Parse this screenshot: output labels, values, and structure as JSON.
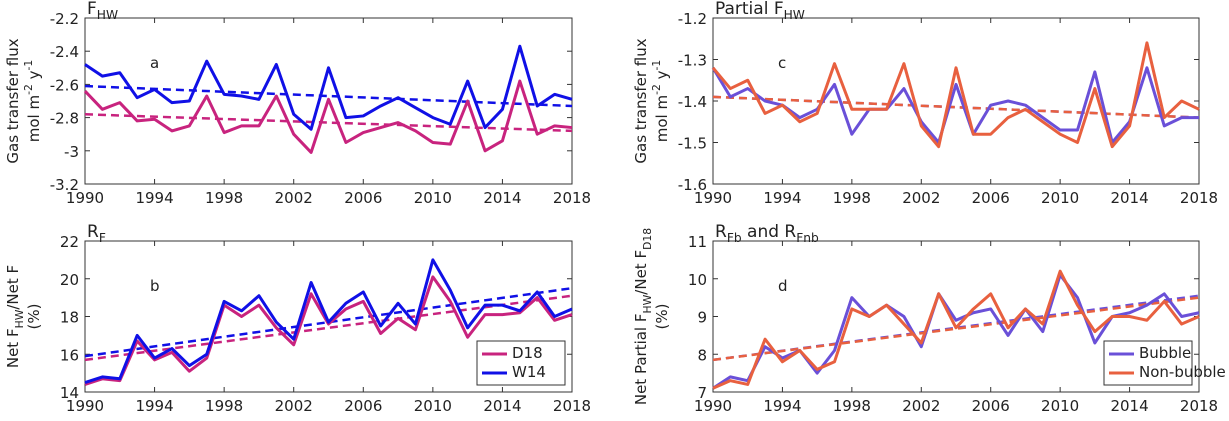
{
  "chart_data": [
    {
      "type": "line",
      "panel": "a",
      "title": [
        "F",
        {
          "text": "HW",
          "script": "sub"
        }
      ],
      "ylabel": [
        [
          "Gas transfer flux"
        ],
        [
          "mol m",
          {
            "text": "-2",
            "script": "super"
          },
          " y",
          {
            "text": "-1",
            "script": "super"
          }
        ]
      ],
      "x": [
        1990,
        1991,
        1992,
        1993,
        1994,
        1995,
        1996,
        1997,
        1998,
        1999,
        2000,
        2001,
        2002,
        2003,
        2004,
        2005,
        2006,
        2007,
        2008,
        2009,
        2010,
        2011,
        2012,
        2013,
        2014,
        2015,
        2016,
        2017,
        2018
      ],
      "series": [
        {
          "name": "D18",
          "color": "#c8237e",
          "values": [
            -2.64,
            -2.75,
            -2.71,
            -2.82,
            -2.81,
            -2.88,
            -2.85,
            -2.67,
            -2.89,
            -2.85,
            -2.85,
            -2.67,
            -2.9,
            -3.01,
            -2.69,
            -2.95,
            -2.89,
            -2.86,
            -2.83,
            -2.88,
            -2.95,
            -2.96,
            -2.7,
            -3.0,
            -2.94,
            -2.58,
            -2.9,
            -2.85,
            -2.86
          ]
        },
        {
          "name": "W14",
          "color": "#1010e6",
          "values": [
            -2.48,
            -2.55,
            -2.53,
            -2.68,
            -2.63,
            -2.71,
            -2.7,
            -2.46,
            -2.66,
            -2.67,
            -2.69,
            -2.48,
            -2.78,
            -2.87,
            -2.5,
            -2.8,
            -2.79,
            -2.73,
            -2.68,
            -2.74,
            -2.8,
            -2.84,
            -2.58,
            -2.86,
            -2.75,
            -2.37,
            -2.73,
            -2.66,
            -2.69
          ]
        }
      ],
      "trends": [
        {
          "color": "#c8237e",
          "x": [
            1990,
            2018
          ],
          "values": [
            -2.78,
            -2.88
          ]
        },
        {
          "color": "#1010e6",
          "x": [
            1990,
            2018
          ],
          "values": [
            -2.61,
            -2.73
          ]
        }
      ],
      "xlim": [
        1990,
        2018
      ],
      "xticks": [
        1990,
        1994,
        1998,
        2002,
        2006,
        2010,
        2014,
        2018
      ],
      "ylim": [
        -3.2,
        -2.2
      ],
      "yticks": [
        -3.2,
        -3,
        -2.8,
        -2.6,
        -2.4,
        -2.2
      ],
      "legend": null
    },
    {
      "type": "line",
      "panel": "b",
      "title": [
        "R",
        {
          "text": "F",
          "script": "sub"
        }
      ],
      "ylabel": [
        [
          "Net F",
          {
            "text": "HW",
            "script": "sub"
          },
          "/Net F"
        ],
        [
          "(%)"
        ]
      ],
      "x": [
        1990,
        1991,
        1992,
        1993,
        1994,
        1995,
        1996,
        1997,
        1998,
        1999,
        2000,
        2001,
        2002,
        2003,
        2004,
        2005,
        2006,
        2007,
        2008,
        2009,
        2010,
        2011,
        2012,
        2013,
        2014,
        2015,
        2016,
        2017,
        2018
      ],
      "series": [
        {
          "name": "D18",
          "color": "#c8237e",
          "values": [
            14.4,
            14.7,
            14.6,
            16.7,
            15.7,
            16.1,
            15.1,
            15.8,
            18.6,
            18.0,
            18.6,
            17.4,
            16.5,
            19.2,
            17.6,
            18.4,
            18.8,
            17.1,
            17.9,
            17.3,
            20.1,
            18.8,
            16.9,
            18.1,
            18.1,
            18.2,
            19.0,
            17.8,
            18.1
          ]
        },
        {
          "name": "W14",
          "color": "#1010e6",
          "values": [
            14.5,
            14.8,
            14.7,
            17.0,
            15.8,
            16.3,
            15.4,
            16.0,
            18.8,
            18.3,
            19.1,
            17.7,
            16.8,
            19.8,
            17.7,
            18.7,
            19.3,
            17.5,
            18.7,
            17.6,
            21.0,
            19.4,
            17.4,
            18.6,
            18.6,
            18.3,
            19.3,
            18.0,
            18.4
          ]
        }
      ],
      "trends": [
        {
          "color": "#c8237e",
          "x": [
            1990,
            2018
          ],
          "values": [
            15.7,
            19.1
          ]
        },
        {
          "color": "#1010e6",
          "x": [
            1990,
            2018
          ],
          "values": [
            15.9,
            19.5
          ]
        }
      ],
      "xlim": [
        1990,
        2018
      ],
      "xticks": [
        1990,
        1994,
        1998,
        2002,
        2006,
        2010,
        2014,
        2018
      ],
      "ylim": [
        14,
        22
      ],
      "yticks": [
        14,
        16,
        18,
        20,
        22
      ],
      "legend": "lower right"
    },
    {
      "type": "line",
      "panel": "c",
      "title": [
        "Partial F",
        {
          "text": "HW",
          "script": "sub"
        }
      ],
      "ylabel": [
        [
          "Gas transfer flux"
        ],
        [
          "mol m",
          {
            "text": "-2",
            "script": "super"
          },
          " y",
          {
            "text": "-1",
            "script": "super"
          }
        ]
      ],
      "x": [
        1990,
        1991,
        1992,
        1993,
        1994,
        1995,
        1996,
        1997,
        1998,
        1999,
        2000,
        2001,
        2002,
        2003,
        2004,
        2005,
        2006,
        2007,
        2008,
        2009,
        2010,
        2011,
        2012,
        2013,
        2014,
        2015,
        2016,
        2017,
        2018
      ],
      "series": [
        {
          "name": "Bubble",
          "color": "#6a50d8",
          "values": [
            -1.32,
            -1.39,
            -1.37,
            -1.4,
            -1.41,
            -1.44,
            -1.42,
            -1.36,
            -1.48,
            -1.42,
            -1.42,
            -1.37,
            -1.45,
            -1.5,
            -1.36,
            -1.48,
            -1.41,
            -1.4,
            -1.41,
            -1.44,
            -1.47,
            -1.47,
            -1.33,
            -1.5,
            -1.45,
            -1.32,
            -1.46,
            -1.44,
            -1.44
          ]
        },
        {
          "name": "Non-bubble",
          "color": "#e8603f",
          "values": [
            -1.32,
            -1.37,
            -1.35,
            -1.43,
            -1.41,
            -1.45,
            -1.43,
            -1.31,
            -1.42,
            -1.42,
            -1.42,
            -1.31,
            -1.46,
            -1.51,
            -1.32,
            -1.48,
            -1.48,
            -1.44,
            -1.42,
            -1.45,
            -1.48,
            -1.5,
            -1.37,
            -1.51,
            -1.46,
            -1.26,
            -1.44,
            -1.4,
            -1.42
          ]
        }
      ],
      "trends": [
        {
          "color": "#6a50d8",
          "x": [
            1990,
            2018
          ],
          "values": [
            -1.39,
            -1.44
          ]
        },
        {
          "color": "#e8603f",
          "x": [
            1990,
            2018
          ],
          "values": [
            -1.39,
            -1.44
          ]
        }
      ],
      "xlim": [
        1990,
        2018
      ],
      "xticks": [
        1990,
        1994,
        1998,
        2002,
        2006,
        2010,
        2014,
        2018
      ],
      "ylim": [
        -1.6,
        -1.2
      ],
      "yticks": [
        -1.6,
        -1.5,
        -1.4,
        -1.3,
        -1.2
      ],
      "legend": null
    },
    {
      "type": "line",
      "panel": "d",
      "title": [
        "R",
        {
          "text": "Fb",
          "script": "sub"
        },
        " and R",
        {
          "text": "Fnb",
          "script": "sub"
        }
      ],
      "ylabel": [
        [
          "Net Partial F",
          {
            "text": "HW",
            "script": "sub"
          },
          "/Net F",
          {
            "text": "D18",
            "script": "sub"
          }
        ],
        [
          "(%)"
        ]
      ],
      "x": [
        1990,
        1991,
        1992,
        1993,
        1994,
        1995,
        1996,
        1997,
        1998,
        1999,
        2000,
        2001,
        2002,
        2003,
        2004,
        2005,
        2006,
        2007,
        2008,
        2009,
        2010,
        2011,
        2012,
        2013,
        2014,
        2015,
        2016,
        2017,
        2018
      ],
      "series": [
        {
          "name": "Bubble",
          "color": "#6a50d8",
          "values": [
            7.1,
            7.4,
            7.3,
            8.2,
            7.9,
            8.1,
            7.5,
            8.1,
            9.5,
            9.0,
            9.3,
            9.0,
            8.2,
            9.6,
            8.9,
            9.1,
            9.2,
            8.5,
            9.2,
            8.6,
            10.1,
            9.5,
            8.3,
            9.0,
            9.1,
            9.3,
            9.6,
            9.0,
            9.1
          ]
        },
        {
          "name": "Non-bubble",
          "color": "#e8603f",
          "values": [
            7.1,
            7.3,
            7.2,
            8.4,
            7.8,
            8.1,
            7.6,
            7.8,
            9.2,
            9.0,
            9.3,
            8.8,
            8.3,
            9.6,
            8.7,
            9.2,
            9.6,
            8.7,
            9.2,
            8.8,
            10.2,
            9.3,
            8.6,
            9.0,
            9.0,
            8.9,
            9.4,
            8.8,
            9.0
          ]
        }
      ],
      "trends": [
        {
          "color": "#6a50d8",
          "x": [
            1990,
            2018
          ],
          "values": [
            7.85,
            9.55
          ]
        },
        {
          "color": "#e8603f",
          "x": [
            1990,
            2018
          ],
          "values": [
            7.85,
            9.5
          ]
        }
      ],
      "xlim": [
        1990,
        2018
      ],
      "xticks": [
        1990,
        1994,
        1998,
        2002,
        2006,
        2010,
        2014,
        2018
      ],
      "ylim": [
        7,
        11
      ],
      "yticks": [
        7,
        8,
        9,
        10,
        11
      ],
      "legend": "lower right"
    }
  ]
}
